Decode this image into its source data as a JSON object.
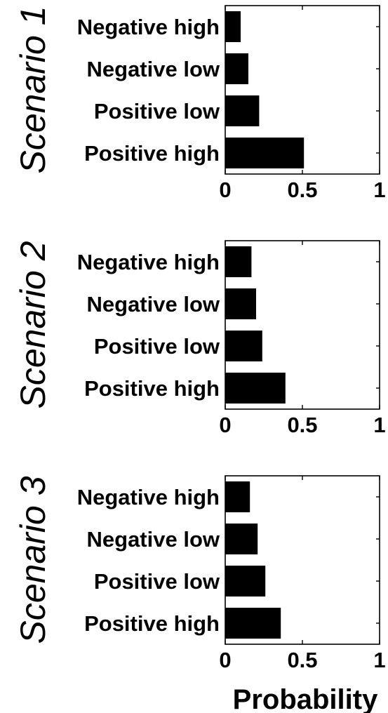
{
  "chart_data": [
    {
      "type": "bar",
      "orientation": "horizontal",
      "title": "Scenario 1",
      "categories": [
        "Negative high",
        "Negative low",
        "Positive low",
        "Positive high"
      ],
      "values": [
        0.1,
        0.15,
        0.22,
        0.51
      ],
      "xticks": [
        "0",
        "0.5",
        "1"
      ],
      "xlim": [
        0,
        1
      ],
      "grid": false,
      "bar_color": "#000000"
    },
    {
      "type": "bar",
      "orientation": "horizontal",
      "title": "Scenario 2",
      "categories": [
        "Negative high",
        "Negative low",
        "Positive low",
        "Positive high"
      ],
      "values": [
        0.17,
        0.2,
        0.24,
        0.39
      ],
      "xticks": [
        "0",
        "0.5",
        "1"
      ],
      "xlim": [
        0,
        1
      ],
      "grid": false,
      "bar_color": "#000000"
    },
    {
      "type": "bar",
      "orientation": "horizontal",
      "title": "Scenario 3",
      "categories": [
        "Negative high",
        "Negative low",
        "Positive low",
        "Positive high"
      ],
      "values": [
        0.16,
        0.21,
        0.26,
        0.36
      ],
      "xticks": [
        "0",
        "0.5",
        "1"
      ],
      "xlim": [
        0,
        1
      ],
      "grid": false,
      "bar_color": "#000000"
    }
  ],
  "xlabel": "Probability"
}
